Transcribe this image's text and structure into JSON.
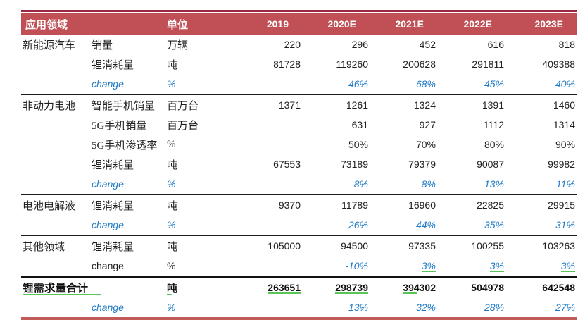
{
  "colors": {
    "header_bar": "#c05056",
    "top_accent_line": "#9b2743",
    "bottom_accent_line": "#c25b57",
    "change_text_blue": "#1e7ac6",
    "review_underline_green": "#58c558",
    "group_separator": "#1c1c1c",
    "body_text": "#1f1f1f"
  },
  "table": {
    "header": {
      "area_label": "应用领域",
      "unit_label": "单位",
      "years": [
        "2019",
        "2020E",
        "2021E",
        "2022E",
        "2023E"
      ]
    },
    "groups": [
      {
        "name": "新能源汽车",
        "rows": [
          {
            "label": "销量",
            "unit": "万辆",
            "style": "normal",
            "values": [
              "220",
              "296",
              "452",
              "616",
              "818"
            ]
          },
          {
            "label": "锂消耗量",
            "unit": "吨",
            "style": "normal",
            "values": [
              "81728",
              "119260",
              "200628",
              "291811",
              "409388"
            ]
          },
          {
            "label": "change",
            "unit": "%",
            "style": "change",
            "values": [
              "",
              "46%",
              "68%",
              "45%",
              "40%"
            ]
          }
        ]
      },
      {
        "name": "非动力电池",
        "rows": [
          {
            "label": "智能手机销量",
            "unit": "百万台",
            "style": "normal",
            "values": [
              "1371",
              "1261",
              "1324",
              "1391",
              "1460"
            ]
          },
          {
            "label": "5G手机销量",
            "unit": "百万台",
            "style": "normal",
            "values": [
              "",
              "631",
              "927",
              "1112",
              "1314"
            ]
          },
          {
            "label": "5G手机渗透率",
            "unit": "%",
            "style": "normal",
            "values": [
              "",
              "50%",
              "70%",
              "80%",
              "90%"
            ]
          },
          {
            "label": "锂消耗量",
            "unit": "吨",
            "style": "normal",
            "values": [
              "67553",
              "73189",
              "79379",
              "90087",
              "99982"
            ]
          },
          {
            "label": "change",
            "unit": "%",
            "style": "change",
            "values": [
              "",
              "8%",
              "8%",
              "13%",
              "11%"
            ]
          }
        ]
      },
      {
        "name": "电池电解液",
        "rows": [
          {
            "label": "锂消耗量",
            "unit": "吨",
            "style": "normal",
            "values": [
              "9370",
              "11789",
              "16960",
              "22825",
              "29915"
            ]
          },
          {
            "label": "change",
            "unit": "%",
            "style": "change",
            "values": [
              "",
              "26%",
              "44%",
              "35%",
              "31%"
            ]
          }
        ]
      },
      {
        "name": "其他领域",
        "rows": [
          {
            "label": "锂消耗量",
            "unit": "吨",
            "style": "normal",
            "values": [
              "105000",
              "94500",
              "97335",
              "100255",
              "103263"
            ]
          },
          {
            "label": "change",
            "unit": "%",
            "style": "change-plain",
            "values": [
              "",
              "-10%",
              "3%",
              "3%",
              "3%"
            ],
            "value_marks": [
              "",
              "",
              "full",
              "full",
              "full"
            ]
          }
        ]
      },
      {
        "name": "锂需求量合计",
        "rows": [
          {
            "label": "",
            "unit": "吨",
            "style": "total",
            "values": [
              "263651",
              "298739",
              "394302",
              "504978",
              "642548"
            ],
            "name_mark": "full",
            "name_mark_extended": true,
            "unit_mark": "part",
            "value_marks": [
              "full",
              "full",
              "part",
              "",
              ""
            ]
          },
          {
            "label": "change",
            "unit": "%",
            "style": "change",
            "values": [
              "",
              "13%",
              "32%",
              "28%",
              "27%"
            ]
          }
        ]
      }
    ]
  }
}
